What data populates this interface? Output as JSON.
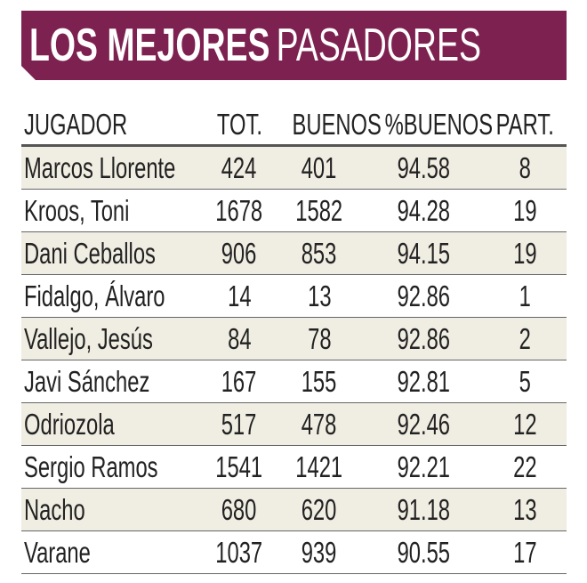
{
  "title": {
    "bold": "LOS MEJORES",
    "light": "PASADORES"
  },
  "colors": {
    "banner": "#7d2150",
    "stripe": "#f0ede2"
  },
  "columns": [
    "JUGADOR",
    "TOT.",
    "BUENOS",
    "%BUENOS",
    "PART."
  ],
  "rows": [
    [
      "Marcos Llorente",
      "424",
      "401",
      "94.58",
      "8"
    ],
    [
      "Kroos, Toni",
      "1678",
      "1582",
      "94.28",
      "19"
    ],
    [
      "Dani Ceballos",
      "906",
      "853",
      "94.15",
      "19"
    ],
    [
      "Fidalgo, Álvaro",
      "14",
      "13",
      "92.86",
      "1"
    ],
    [
      "Vallejo, Jesús",
      "84",
      "78",
      "92.86",
      "2"
    ],
    [
      "Javi Sánchez",
      "167",
      "155",
      "92.81",
      "5"
    ],
    [
      "Odriozola",
      "517",
      "478",
      "92.46",
      "12"
    ],
    [
      "Sergio Ramos",
      "1541",
      "1421",
      "92.21",
      "22"
    ],
    [
      "Nacho",
      "680",
      "620",
      "91.18",
      "13"
    ],
    [
      "Varane",
      "1037",
      "939",
      "90.55",
      "17"
    ]
  ]
}
